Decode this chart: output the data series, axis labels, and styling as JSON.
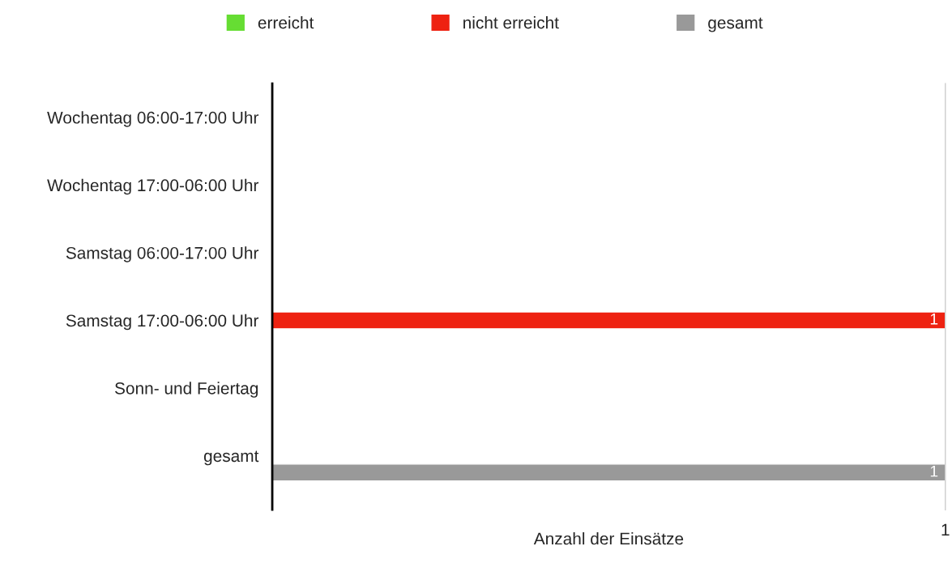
{
  "chart_data": {
    "type": "bar",
    "orientation": "horizontal",
    "categories": [
      "Wochentag 06:00-17:00 Uhr",
      "Wochentag 17:00-06:00 Uhr",
      "Samstag 06:00-17:00 Uhr",
      "Samstag 17:00-06:00 Uhr",
      "Sonn- und Feiertag",
      "gesamt"
    ],
    "series": [
      {
        "name": "erreicht",
        "color": "#66dd33",
        "values": [
          null,
          null,
          null,
          null,
          null,
          null
        ]
      },
      {
        "name": "nicht erreicht",
        "color": "#ee2211",
        "values": [
          null,
          null,
          null,
          1,
          null,
          null
        ]
      },
      {
        "name": "gesamt",
        "color": "#999999",
        "values": [
          null,
          null,
          null,
          null,
          null,
          1
        ]
      }
    ],
    "xlabel": "Anzahl der Einsätze",
    "annotations": [
      "1"
    ],
    "legend": "top",
    "data_labels": true
  }
}
